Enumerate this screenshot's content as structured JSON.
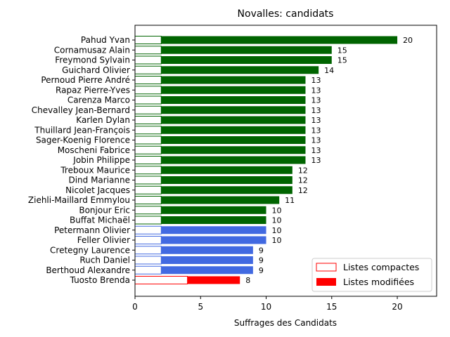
{
  "chart_data": {
    "type": "bar",
    "orientation": "horizontal",
    "title": "Novalles: candidats",
    "xlabel": "Suffrages des Candidats",
    "ylabel": "",
    "xlim": [
      0,
      23
    ],
    "xticks": [
      0,
      5,
      10,
      15,
      20
    ],
    "grid": false,
    "legend_position": "lower-right",
    "categories": [
      "Pahud Yvan",
      "Cornamusaz Alain",
      "Freymond Sylvain",
      "Guichard Olivier",
      "Pernoud Pierre André",
      "Rapaz Pierre-Yves",
      "Carenza Marco",
      "Chevalley Jean-Bernard",
      "Karlen Dylan",
      "Thuillard Jean-François",
      "Sager-Koenig Florence",
      "Moscheni Fabrice",
      "Jobin Philippe",
      "Treboux Maurice",
      "Dind Marianne",
      "Nicolet Jacques",
      "Ziehli-Maillard Emmylou",
      "Bonjour Eric",
      "Buffat Michaël",
      "Petermann Olivier",
      "Feller Olivier",
      "Cretegny Laurence",
      "Ruch Daniel",
      "Berthoud Alexandre",
      "Tuosto Brenda"
    ],
    "series": [
      {
        "name": "Listes compactes",
        "values": [
          2,
          2,
          2,
          2,
          2,
          2,
          2,
          2,
          2,
          2,
          2,
          2,
          2,
          2,
          2,
          2,
          2,
          2,
          2,
          2,
          2,
          2,
          2,
          2,
          4
        ]
      },
      {
        "name": "Listes modifiées",
        "values": [
          18,
          13,
          13,
          12,
          11,
          11,
          11,
          11,
          11,
          11,
          11,
          11,
          11,
          10,
          10,
          10,
          9,
          8,
          8,
          8,
          8,
          7,
          7,
          7,
          4
        ]
      }
    ],
    "totals": [
      20,
      15,
      15,
      14,
      13,
      13,
      13,
      13,
      13,
      13,
      13,
      13,
      13,
      12,
      12,
      12,
      11,
      10,
      10,
      10,
      10,
      9,
      9,
      9,
      8
    ],
    "bar_colors": [
      "#006400",
      "#006400",
      "#006400",
      "#006400",
      "#006400",
      "#006400",
      "#006400",
      "#006400",
      "#006400",
      "#006400",
      "#006400",
      "#006400",
      "#006400",
      "#006400",
      "#006400",
      "#006400",
      "#006400",
      "#006400",
      "#006400",
      "#4169e1",
      "#4169e1",
      "#4169e1",
      "#4169e1",
      "#4169e1",
      "#ff0000"
    ],
    "legend": [
      {
        "label": "Listes compactes",
        "style": "outline",
        "color": "#ff0000"
      },
      {
        "label": "Listes modifiées",
        "style": "filled",
        "color": "#ff0000"
      }
    ]
  }
}
